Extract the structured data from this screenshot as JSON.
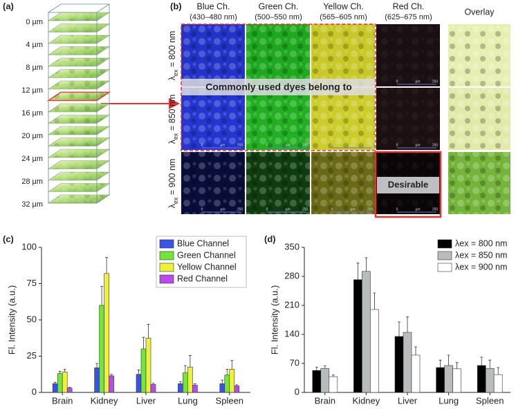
{
  "panel_a": {
    "label": "(a)",
    "depths": [
      "0 µm",
      "4 µm",
      "8 µm",
      "12 µm",
      "16 µm",
      "20 µm",
      "24 µm",
      "28 µm",
      "32 µm"
    ]
  },
  "panel_b": {
    "label": "(b)",
    "columns": [
      {
        "name": "Blue Ch.",
        "range": "(430–480 nm)"
      },
      {
        "name": "Green Ch.",
        "range": "(500–550 nm)"
      },
      {
        "name": "Yellow Ch.",
        "range": "(565–605 nm)"
      },
      {
        "name": "Red Ch.",
        "range": "(625–675 nm)"
      }
    ],
    "overlay": "Overlay",
    "rows": [
      {
        "symbol": "λ",
        "subscript": "ex",
        "text": " = 800 nm"
      },
      {
        "symbol": "λ",
        "subscript": "ex",
        "text": " = 850 nm"
      },
      {
        "symbol": "λ",
        "subscript": "ex",
        "text": " = 900 nm"
      }
    ],
    "annotation_common": "Commonly used dyes belong to",
    "annotation_desirable": "Desirable",
    "scale_bar": {
      "start": "0",
      "unit": "µm",
      "end": "250"
    }
  },
  "chart_data": [
    {
      "type": "bar",
      "label": "(c)",
      "y_label": "Fl. Intensity (a.u.)",
      "categories": [
        "Brain",
        "Kidney",
        "Liver",
        "Lung",
        "Spleen"
      ],
      "series": [
        {
          "name": "Blue Channel",
          "color": "#3a52e6",
          "values": [
            6,
            17,
            12.5,
            6,
            6
          ],
          "errors": [
            1,
            3,
            3,
            1.5,
            2.5
          ]
        },
        {
          "name": "Green Channel",
          "color": "#72e63a",
          "values": [
            13,
            60,
            30,
            13.5,
            12
          ],
          "errors": [
            1.5,
            13,
            8,
            5,
            4
          ]
        },
        {
          "name": "Yellow Channel",
          "color": "#eef03c",
          "values": [
            14,
            82,
            37.5,
            17.5,
            16
          ],
          "errors": [
            2,
            11,
            9.5,
            8,
            6
          ]
        },
        {
          "name": "Red Channel",
          "color": "#b84ce8",
          "values": [
            3,
            11.5,
            5.5,
            5,
            4.5
          ],
          "errors": [
            0.5,
            1,
            0.8,
            1,
            0.8
          ]
        }
      ],
      "ylim": [
        0,
        100
      ],
      "yticks": [
        0,
        25,
        50,
        75,
        100
      ],
      "legend": "upper right"
    },
    {
      "type": "bar",
      "label": "(d)",
      "y_label": "Fl. Intensity (a.u.)",
      "categories": [
        "Brain",
        "Kidney",
        "Liver",
        "Lung",
        "Spleen"
      ],
      "series": [
        {
          "name": "λex = 800 nm",
          "color": "#000000",
          "values": [
            53,
            272,
            135,
            60,
            65
          ],
          "errors": [
            8,
            40,
            35,
            18,
            20
          ]
        },
        {
          "name": "λex = 850 nm",
          "color": "#b8bcbd",
          "values": [
            58,
            292,
            145,
            65,
            58
          ],
          "errors": [
            6,
            33,
            37,
            25,
            20
          ]
        },
        {
          "name": "λex = 900 nm",
          "color": "#ffffff",
          "values": [
            38,
            200,
            90,
            57,
            43
          ],
          "errors": [
            4,
            40,
            20,
            15,
            17
          ]
        }
      ],
      "ylim": [
        0,
        350
      ],
      "yticks": [
        0,
        70,
        140,
        210,
        280,
        350
      ],
      "legend": "upper right"
    }
  ]
}
